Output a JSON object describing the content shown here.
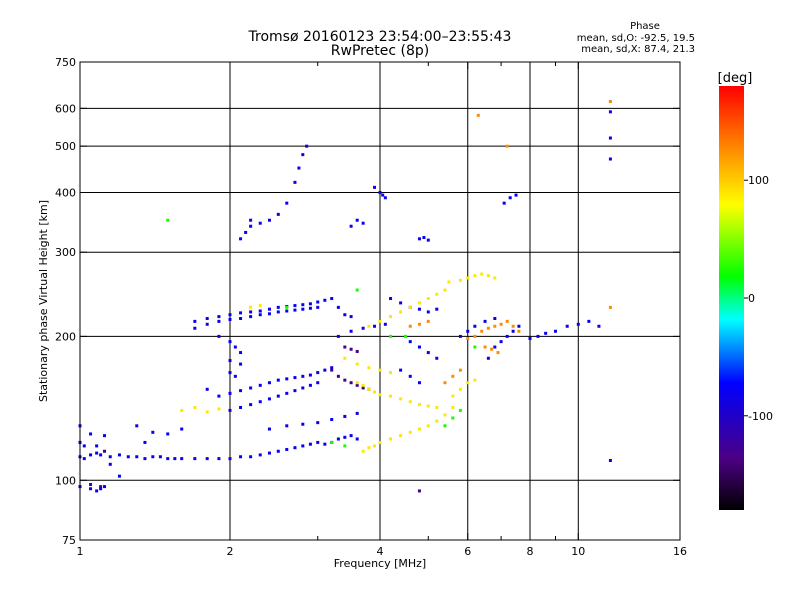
{
  "chart_data": {
    "type": "scatter",
    "title": "Tromsø 20160123 23:54:00–23:55:43",
    "subtitle": "RwPretec (8p)",
    "xlabel": "Frequency [MHz]",
    "ylabel": "Stationary phase Virtual Height [km]",
    "x_scale": "log",
    "y_scale": "log",
    "xlim": [
      1,
      16
    ],
    "ylim": [
      75,
      750
    ],
    "x_ticks": [
      1,
      2,
      4,
      6,
      8,
      10,
      16
    ],
    "x_tick_labels": [
      "1",
      "2",
      "4",
      "6",
      "8",
      "10",
      "16"
    ],
    "x_grid": [
      2,
      4,
      6,
      8,
      10
    ],
    "x_minor": [
      3,
      5,
      7,
      9
    ],
    "y_ticks": [
      75,
      100,
      200,
      300,
      400,
      500,
      600,
      750
    ],
    "y_tick_labels": [
      "75",
      "100",
      "200",
      "300",
      "400",
      "500",
      "600",
      "750"
    ],
    "y_grid": [
      100,
      200,
      300,
      400,
      500,
      600
    ],
    "grid": true,
    "phase_box": {
      "title": "Phase",
      "line1": "mean, sd,O: -92.5, 19.5",
      "line2": "mean, sd,X:  87.4, 21.3"
    },
    "colorbar": {
      "label": "[deg]",
      "range": [
        -180,
        180
      ],
      "ticks": [
        100,
        0,
        -100
      ],
      "tick_labels": [
        "100",
        "0",
        "-100"
      ],
      "colormap": "rainbow (black-purple-blue-cyan-green-yellow-orange-red)"
    },
    "series": [
      {
        "phase": -95,
        "points": [
          [
            1.0,
            112
          ],
          [
            1.02,
            111
          ],
          [
            1.05,
            113
          ],
          [
            1.08,
            114
          ],
          [
            1.1,
            113
          ],
          [
            1.15,
            112
          ],
          [
            1.2,
            113
          ],
          [
            1.25,
            112
          ],
          [
            1.3,
            112
          ],
          [
            1.35,
            111
          ],
          [
            1.4,
            112
          ],
          [
            1.45,
            112
          ],
          [
            1.5,
            111
          ],
          [
            1.55,
            111
          ],
          [
            1.6,
            111
          ],
          [
            1.7,
            111
          ],
          [
            1.8,
            111
          ],
          [
            1.9,
            111
          ],
          [
            2.0,
            111
          ],
          [
            2.1,
            112
          ],
          [
            2.2,
            112
          ],
          [
            2.3,
            113
          ],
          [
            2.4,
            114
          ],
          [
            2.5,
            115
          ],
          [
            2.6,
            116
          ],
          [
            2.7,
            117
          ],
          [
            2.8,
            118
          ],
          [
            2.9,
            119
          ],
          [
            3.0,
            120
          ],
          [
            3.1,
            119
          ],
          [
            3.2,
            120
          ],
          [
            3.3,
            122
          ],
          [
            3.4,
            123
          ],
          [
            3.5,
            124
          ],
          [
            3.6,
            122
          ],
          [
            1.0,
            97
          ],
          [
            1.05,
            96
          ],
          [
            1.08,
            95
          ],
          [
            1.1,
            96
          ],
          [
            1.12,
            97
          ],
          [
            1.0,
            120
          ],
          [
            1.05,
            125
          ],
          [
            1.08,
            118
          ],
          [
            1.12,
            124
          ],
          [
            1.3,
            130
          ],
          [
            1.35,
            120
          ],
          [
            1.4,
            126
          ],
          [
            1.5,
            125
          ],
          [
            1.6,
            128
          ],
          [
            1.7,
            215
          ],
          [
            1.8,
            218
          ],
          [
            1.9,
            220
          ],
          [
            2.0,
            222
          ],
          [
            2.1,
            224
          ],
          [
            2.2,
            225
          ],
          [
            2.3,
            226
          ],
          [
            2.4,
            228
          ],
          [
            2.5,
            230
          ],
          [
            2.6,
            231
          ],
          [
            2.7,
            232
          ],
          [
            2.8,
            233
          ],
          [
            2.9,
            234
          ],
          [
            3.0,
            236
          ],
          [
            3.1,
            238
          ],
          [
            3.2,
            240
          ],
          [
            3.3,
            230
          ],
          [
            3.4,
            222
          ],
          [
            3.5,
            220
          ],
          [
            1.7,
            208
          ],
          [
            1.8,
            212
          ],
          [
            1.9,
            215
          ],
          [
            2.0,
            217
          ],
          [
            2.1,
            218
          ],
          [
            2.2,
            220
          ],
          [
            2.3,
            222
          ],
          [
            2.4,
            223
          ],
          [
            2.5,
            225
          ],
          [
            2.6,
            226
          ],
          [
            2.7,
            227
          ],
          [
            2.8,
            228
          ],
          [
            2.9,
            229
          ],
          [
            3.0,
            230
          ],
          [
            1.9,
            200
          ],
          [
            2.0,
            195
          ],
          [
            2.05,
            190
          ],
          [
            2.1,
            185
          ],
          [
            2.0,
            178
          ],
          [
            2.1,
            175
          ],
          [
            2.0,
            168
          ],
          [
            2.05,
            165
          ],
          [
            1.8,
            155
          ],
          [
            1.9,
            150
          ],
          [
            2.0,
            152
          ],
          [
            2.1,
            154
          ],
          [
            2.2,
            156
          ],
          [
            2.3,
            158
          ],
          [
            2.4,
            160
          ],
          [
            2.5,
            162
          ],
          [
            2.6,
            163
          ],
          [
            2.7,
            164
          ],
          [
            2.8,
            165
          ],
          [
            2.9,
            166
          ],
          [
            3.0,
            168
          ],
          [
            3.1,
            170
          ],
          [
            3.2,
            172
          ],
          [
            2.0,
            140
          ],
          [
            2.1,
            142
          ],
          [
            2.2,
            144
          ],
          [
            2.3,
            146
          ],
          [
            2.4,
            148
          ],
          [
            2.5,
            150
          ],
          [
            2.6,
            152
          ],
          [
            2.7,
            154
          ],
          [
            2.8,
            156
          ],
          [
            2.9,
            158
          ],
          [
            3.0,
            160
          ],
          [
            2.4,
            128
          ],
          [
            2.6,
            130
          ],
          [
            2.8,
            131
          ],
          [
            3.0,
            132
          ],
          [
            3.2,
            134
          ],
          [
            3.4,
            136
          ],
          [
            3.6,
            138
          ],
          [
            2.2,
            340
          ],
          [
            2.3,
            345
          ],
          [
            2.4,
            350
          ],
          [
            2.5,
            360
          ],
          [
            2.6,
            380
          ],
          [
            2.7,
            420
          ],
          [
            2.75,
            450
          ],
          [
            2.8,
            480
          ],
          [
            2.85,
            500
          ],
          [
            2.1,
            320
          ],
          [
            2.15,
            330
          ],
          [
            2.2,
            350
          ],
          [
            3.6,
            350
          ],
          [
            3.7,
            345
          ],
          [
            3.5,
            340
          ],
          [
            3.9,
            410
          ],
          [
            4.0,
            400
          ],
          [
            4.05,
            395
          ],
          [
            4.1,
            390
          ],
          [
            4.8,
            320
          ],
          [
            4.9,
            322
          ],
          [
            5.0,
            318
          ],
          [
            4.2,
            240
          ],
          [
            4.4,
            235
          ],
          [
            4.6,
            230
          ],
          [
            4.8,
            228
          ],
          [
            5.0,
            225
          ],
          [
            5.2,
            228
          ],
          [
            3.3,
            200
          ],
          [
            3.5,
            205
          ],
          [
            3.7,
            208
          ],
          [
            3.9,
            210
          ],
          [
            4.1,
            212
          ],
          [
            6.6,
            180
          ],
          [
            6.8,
            190
          ],
          [
            7.0,
            195
          ],
          [
            7.2,
            200
          ],
          [
            7.4,
            205
          ],
          [
            7.6,
            210
          ],
          [
            8.0,
            198
          ],
          [
            8.3,
            200
          ],
          [
            8.6,
            203
          ],
          [
            9.0,
            205
          ],
          [
            9.5,
            210
          ],
          [
            10.0,
            212
          ],
          [
            10.5,
            215
          ],
          [
            11.0,
            210
          ],
          [
            11.6,
            110
          ],
          [
            11.6,
            470
          ],
          [
            11.6,
            520
          ],
          [
            11.6,
            590
          ],
          [
            1.0,
            130
          ],
          [
            1.02,
            118
          ],
          [
            1.15,
            108
          ],
          [
            1.2,
            102
          ],
          [
            4.6,
            195
          ],
          [
            4.8,
            190
          ],
          [
            5.0,
            185
          ],
          [
            5.2,
            180
          ],
          [
            4.4,
            170
          ],
          [
            4.6,
            165
          ],
          [
            4.8,
            160
          ],
          [
            7.1,
            380
          ],
          [
            7.3,
            390
          ],
          [
            7.5,
            395
          ],
          [
            5.8,
            200
          ],
          [
            6.0,
            205
          ],
          [
            6.2,
            210
          ],
          [
            6.5,
            215
          ],
          [
            6.8,
            218
          ]
        ]
      },
      {
        "phase": -135,
        "points": [
          [
            3.2,
            170
          ],
          [
            3.3,
            165
          ],
          [
            3.4,
            162
          ],
          [
            3.5,
            160
          ],
          [
            3.6,
            158
          ],
          [
            3.7,
            156
          ],
          [
            3.8,
            155
          ],
          [
            1.05,
            98
          ],
          [
            1.1,
            97
          ],
          [
            3.4,
            190
          ],
          [
            3.5,
            188
          ],
          [
            3.6,
            186
          ],
          [
            4.8,
            95
          ],
          [
            1.12,
            115
          ]
        ]
      },
      {
        "phase": 90,
        "points": [
          [
            3.7,
            115
          ],
          [
            3.8,
            117
          ],
          [
            3.9,
            118
          ],
          [
            4.0,
            120
          ],
          [
            4.2,
            122
          ],
          [
            4.4,
            124
          ],
          [
            4.6,
            126
          ],
          [
            4.8,
            128
          ],
          [
            5.0,
            130
          ],
          [
            5.2,
            133
          ],
          [
            5.4,
            137
          ],
          [
            5.6,
            142
          ],
          [
            3.6,
            160
          ],
          [
            3.7,
            158
          ],
          [
            3.8,
            155
          ],
          [
            3.9,
            153
          ],
          [
            4.0,
            151
          ],
          [
            4.2,
            150
          ],
          [
            4.4,
            148
          ],
          [
            4.6,
            146
          ],
          [
            4.8,
            144
          ],
          [
            5.0,
            143
          ],
          [
            5.2,
            142
          ],
          [
            3.8,
            210
          ],
          [
            4.0,
            215
          ],
          [
            4.2,
            220
          ],
          [
            4.4,
            225
          ],
          [
            4.6,
            230
          ],
          [
            4.8,
            235
          ],
          [
            5.0,
            240
          ],
          [
            5.2,
            245
          ],
          [
            5.4,
            250
          ],
          [
            5.5,
            260
          ],
          [
            5.8,
            262
          ],
          [
            6.0,
            265
          ],
          [
            6.2,
            268
          ],
          [
            6.4,
            270
          ],
          [
            6.6,
            268
          ],
          [
            6.8,
            265
          ],
          [
            3.4,
            180
          ],
          [
            3.6,
            175
          ],
          [
            3.8,
            172
          ],
          [
            4.0,
            170
          ],
          [
            4.2,
            168
          ],
          [
            1.6,
            140
          ],
          [
            1.7,
            142
          ],
          [
            1.8,
            139
          ],
          [
            1.9,
            141
          ],
          [
            5.6,
            150
          ],
          [
            5.8,
            155
          ],
          [
            6.0,
            160
          ],
          [
            6.2,
            162
          ],
          [
            2.2,
            230
          ],
          [
            2.3,
            232
          ]
        ]
      },
      {
        "phase": 130,
        "points": [
          [
            6.0,
            198
          ],
          [
            6.2,
            200
          ],
          [
            6.4,
            205
          ],
          [
            6.6,
            208
          ],
          [
            6.8,
            210
          ],
          [
            7.0,
            212
          ],
          [
            7.2,
            215
          ],
          [
            7.4,
            210
          ],
          [
            7.6,
            205
          ],
          [
            6.5,
            190
          ],
          [
            6.7,
            188
          ],
          [
            6.9,
            185
          ],
          [
            4.6,
            210
          ],
          [
            4.8,
            212
          ],
          [
            5.0,
            215
          ],
          [
            6.3,
            580
          ],
          [
            7.2,
            500
          ],
          [
            11.6,
            620
          ],
          [
            11.6,
            230
          ],
          [
            5.4,
            160
          ],
          [
            5.6,
            165
          ],
          [
            5.8,
            170
          ]
        ]
      },
      {
        "phase": 15,
        "points": [
          [
            5.4,
            130
          ],
          [
            5.6,
            135
          ],
          [
            5.8,
            140
          ],
          [
            3.2,
            120
          ],
          [
            3.4,
            118
          ],
          [
            4.5,
            200
          ],
          [
            6.2,
            190
          ],
          [
            1.5,
            350
          ],
          [
            2.6,
            230
          ],
          [
            3.6,
            250
          ],
          [
            4.2,
            200
          ]
        ]
      }
    ]
  }
}
